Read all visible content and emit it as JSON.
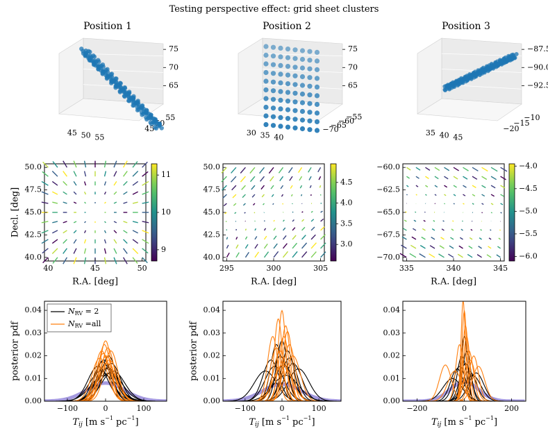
{
  "suptitle": "Testing perspective effect: grid sheet clusters",
  "colors": {
    "scatter": "#1f77b4",
    "nrv2": "#000000",
    "nrvall": "#ff7f0e",
    "truth": "#9b8fdc",
    "pane": "#f2f2f2"
  },
  "chart_data": [
    {
      "type": "scatter",
      "panel": "row1-col1",
      "title": "Position 1",
      "xticks": [
        "45",
        "50",
        "55"
      ],
      "yticks": [
        "45",
        "50",
        "55"
      ],
      "zticks": [
        "65",
        "70",
        "75"
      ],
      "shape": "elongated sheet seen edge-on"
    },
    {
      "type": "scatter",
      "panel": "row1-col2",
      "title": "Position 2",
      "xticks": [
        "30",
        "35",
        "40"
      ],
      "yticks": [
        "−70",
        "−65",
        "−60",
        "−55"
      ],
      "zticks": [
        "65",
        "70",
        "75"
      ],
      "shape": "grid sheet seen face-on"
    },
    {
      "type": "scatter",
      "panel": "row1-col3",
      "title": "Position 3",
      "xticks": [
        "35",
        "40",
        "45"
      ],
      "yticks": [
        "−20",
        "−15",
        "−10"
      ],
      "zticks": [
        "−92.5",
        "−90.0",
        "−87.5"
      ],
      "shape": "thin elongated sheet"
    },
    {
      "type": "quiver",
      "panel": "row2-col1",
      "xlabel": "R.A. [deg]",
      "ylabel": "Decl. [deg]",
      "xlim": [
        39.6,
        50.4
      ],
      "ylim": [
        39.6,
        50.4
      ],
      "xticks": [
        "40",
        "45",
        "50"
      ],
      "yticks": [
        "40.0",
        "42.5",
        "45.0",
        "47.5",
        "50.0"
      ],
      "center": [
        45,
        45
      ],
      "pattern": "radial outward",
      "colorbar": {
        "range": [
          8.7,
          11.3
        ],
        "ticks": [
          "9",
          "10",
          "11"
        ]
      }
    },
    {
      "type": "quiver",
      "panel": "row2-col2",
      "xlabel": "R.A. [deg]",
      "ylabel": "",
      "xlim": [
        294.6,
        305.4
      ],
      "ylim": [
        39.6,
        50.4
      ],
      "xticks": [
        "295",
        "300",
        "305"
      ],
      "yticks": [
        "40.0",
        "42.5",
        "45.0",
        "47.5",
        "50.0"
      ],
      "center": [
        300,
        45
      ],
      "pattern": "swirl",
      "colorbar": {
        "range": [
          2.6,
          4.95
        ],
        "ticks": [
          "3.0",
          "3.5",
          "4.0",
          "4.5"
        ]
      }
    },
    {
      "type": "quiver",
      "panel": "row2-col3",
      "xlabel": "R.A. [deg]",
      "ylabel": "",
      "xlim": [
        334.6,
        345.4
      ],
      "ylim": [
        -70.4,
        -59.6
      ],
      "xticks": [
        "335",
        "340",
        "345"
      ],
      "yticks": [
        "−70.0",
        "−67.5",
        "−65.0",
        "−62.5",
        "−60.0"
      ],
      "center": [
        340,
        -65
      ],
      "pattern": "shear",
      "colorbar": {
        "range": [
          -6.1,
          -3.95
        ],
        "ticks": [
          "−6.0",
          "−5.5",
          "−5.0",
          "−4.5",
          "−4.0"
        ]
      }
    },
    {
      "type": "line",
      "panel": "row3-col1",
      "xlabel": "T_ij [m s^-1 pc^-1]",
      "ylabel": "posterior pdf",
      "xlim": [
        -160,
        160
      ],
      "ylim": [
        0,
        0.044
      ],
      "xticks": [
        "−100",
        "0",
        "100"
      ],
      "yticks": [
        "0.00",
        "0.01",
        "0.02",
        "0.03",
        "0.04"
      ],
      "legend": {
        "placement": "upper left",
        "entries": [
          "N_RV = 2",
          "N_RV =all"
        ]
      },
      "truth": {
        "mu": 0,
        "sigma": 50,
        "peak": 0.008
      },
      "series": [
        {
          "group": "nrv2",
          "mu": [
            -12,
            -5,
            0,
            3,
            8,
            12,
            -20,
            15,
            -3,
            6,
            -8,
            20
          ],
          "sigma": [
            30,
            22,
            25,
            28,
            20,
            32,
            26,
            24,
            35,
            27,
            23,
            30
          ]
        },
        {
          "group": "nrvall",
          "mu": [
            -10,
            -3,
            2,
            6,
            -6,
            10,
            0,
            4,
            -15,
            14
          ],
          "sigma": [
            18,
            16,
            20,
            17,
            19,
            22,
            15,
            24,
            21,
            18
          ]
        }
      ]
    },
    {
      "type": "line",
      "panel": "row3-col2",
      "xlabel": "T_ij [m s^-1 pc^-1]",
      "ylabel": "posterior pdf",
      "xlim": [
        -160,
        160
      ],
      "ylim": [
        0,
        0.044
      ],
      "xticks": [
        "−100",
        "0",
        "100"
      ],
      "yticks": [
        "0.00",
        "0.01",
        "0.02",
        "0.03",
        "0.04"
      ],
      "truth": {
        "mu": 0,
        "sigma": 52,
        "peak": 0.0075
      },
      "series": [
        {
          "group": "nrv2",
          "mu": [
            -30,
            -15,
            -5,
            5,
            15,
            30,
            45,
            -45,
            0,
            20,
            -20,
            10
          ],
          "sigma": [
            22,
            16,
            20,
            25,
            18,
            24,
            28,
            30,
            15,
            21,
            26,
            35
          ]
        },
        {
          "group": "nrvall",
          "mu": [
            -25,
            -10,
            0,
            5,
            10,
            20,
            -5,
            30,
            15,
            -15,
            2
          ],
          "sigma": [
            14,
            11,
            10,
            14,
            12,
            16,
            18,
            20,
            13,
            17,
            25
          ]
        }
      ]
    },
    {
      "type": "line",
      "panel": "row3-col3",
      "xlabel": "T_ij [m s^-1 pc^-1]",
      "ylabel": "",
      "xlim": [
        -260,
        260
      ],
      "ylim": [
        0,
        0.044
      ],
      "xticks": [
        "−200",
        "0",
        "200"
      ],
      "yticks": [
        "0.00",
        "0.01",
        "0.02",
        "0.03",
        "0.04"
      ],
      "truth": {
        "mu": 0,
        "sigma": 60,
        "peak": 0.0085
      },
      "series": [
        {
          "group": "nrv2",
          "mu": [
            -30,
            -10,
            5,
            20,
            35,
            -50,
            10,
            -20,
            50,
            0
          ],
          "sigma": [
            28,
            20,
            24,
            30,
            35,
            40,
            18,
            26,
            32,
            14
          ]
        },
        {
          "group": "nrvall",
          "mu": [
            -80,
            -20,
            -5,
            0,
            5,
            10,
            20,
            40,
            -40,
            25,
            60
          ],
          "sigma": [
            25,
            16,
            9,
            10,
            12,
            14,
            18,
            20,
            30,
            22,
            26
          ]
        }
      ]
    }
  ]
}
